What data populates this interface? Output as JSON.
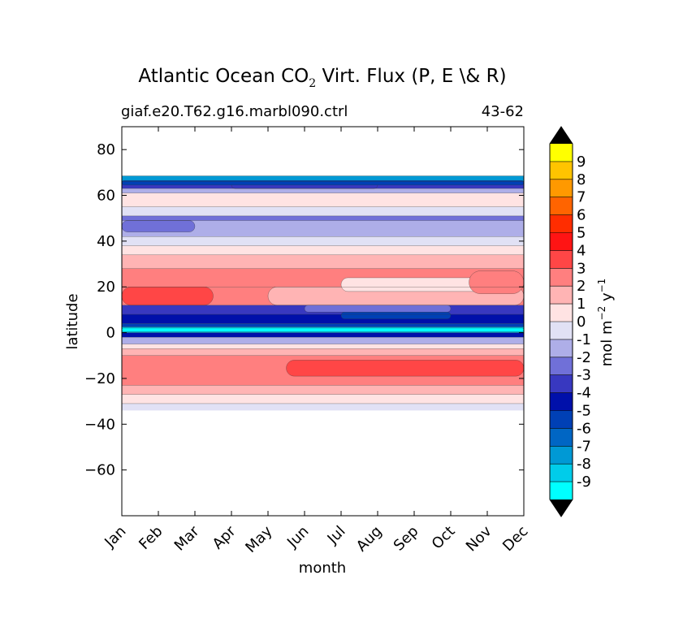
{
  "chart_data": {
    "type": "heatmap",
    "title_main": "Atlantic Ocean CO",
    "title_sub": "2",
    "title_rest": " Virt. Flux (P, E \\& R)",
    "case_label": "giaf.e20.T62.g16.marbl090.ctrl",
    "years_label": "43-62",
    "xlabel": "month",
    "ylabel": "latitude",
    "x_categories": [
      "Jan",
      "Feb",
      "Mar",
      "Apr",
      "May",
      "Jun",
      "Jul",
      "Aug",
      "Sep",
      "Oct",
      "Nov",
      "Dec"
    ],
    "ylim": [
      -80,
      90
    ],
    "y_ticks": [
      80,
      60,
      40,
      20,
      0,
      -20,
      -40,
      -60
    ],
    "y_tick_labels": [
      "80",
      "60",
      "40",
      "20",
      "0",
      "−20",
      "−40",
      "−60"
    ],
    "colorbar": {
      "levels": [
        -10,
        -9,
        -8,
        -7,
        -6,
        -5,
        -4,
        -3,
        -2,
        -1,
        0,
        1,
        2,
        3,
        4,
        5,
        6,
        7,
        8,
        9,
        10
      ],
      "tick_labels": [
        "-9",
        "-8",
        "-7",
        "-6",
        "-5",
        "-4",
        "-3",
        "-2",
        "-1",
        "0",
        "1",
        "2",
        "3",
        "4",
        "5",
        "6",
        "7",
        "8",
        "9"
      ],
      "colors": [
        "#00ffff",
        "#00ccea",
        "#0099d5",
        "#0066c4",
        "#0040b5",
        "#0010aa",
        "#3838c0",
        "#7070d8",
        "#aeaee8",
        "#e1e1f5",
        "#ffe3e3",
        "#ffb4b4",
        "#ff7f7f",
        "#ff4646",
        "#ff1414",
        "#ff2d00",
        "#ff6400",
        "#ff9900",
        "#ffc400",
        "#ffff00"
      ],
      "extend_color": "#000000",
      "label": "mol m",
      "label_exp1": "−2",
      "label_mid": "  y",
      "label_exp2": "−1"
    },
    "bands": [
      {
        "lat_min": 66,
        "lat_max": 68.5,
        "level": -8
      },
      {
        "lat_min": 63,
        "lat_max": 66,
        "level": -4
      },
      {
        "lat_min": 61,
        "lat_max": 63,
        "level": -2
      },
      {
        "lat_min": 55,
        "lat_max": 61,
        "level": 0.5
      },
      {
        "lat_min": 51,
        "lat_max": 55,
        "level": -0.5
      },
      {
        "lat_min": 49,
        "lat_max": 51,
        "level": -2.5
      },
      {
        "lat_min": 42,
        "lat_max": 49,
        "level": -1.5
      },
      {
        "lat_min": 38,
        "lat_max": 42,
        "level": -0.5
      },
      {
        "lat_min": 34,
        "lat_max": 38,
        "level": 0.5
      },
      {
        "lat_min": 28,
        "lat_max": 34,
        "level": 1.5
      },
      {
        "lat_min": 20,
        "lat_max": 28,
        "level": 2.5
      },
      {
        "lat_min": 12,
        "lat_max": 20,
        "level": 2.5
      },
      {
        "lat_min": 8,
        "lat_max": 12,
        "level": -3.5
      },
      {
        "lat_min": 4,
        "lat_max": 8,
        "level": -4.5
      },
      {
        "lat_min": 2.5,
        "lat_max": 4,
        "level": -5.5
      },
      {
        "lat_min": 0,
        "lat_max": 2.5,
        "level": -8.5
      },
      {
        "lat_min": -2,
        "lat_max": 0,
        "level": -4.5
      },
      {
        "lat_min": -5,
        "lat_max": -2,
        "level": -1.5
      },
      {
        "lat_min": -7,
        "lat_max": -5,
        "level": 0.5
      },
      {
        "lat_min": -10,
        "lat_max": -7,
        "level": 1.5
      },
      {
        "lat_min": -23,
        "lat_max": -10,
        "level": 2.5
      },
      {
        "lat_min": -27,
        "lat_max": -23,
        "level": 1.5
      },
      {
        "lat_min": -31,
        "lat_max": -27,
        "level": 0.5
      },
      {
        "lat_min": -34,
        "lat_max": -31,
        "level": -0.5
      }
    ],
    "patches": [
      {
        "month_start": 0,
        "month_end": 2.5,
        "lat_min": 12,
        "lat_max": 20,
        "level": 3.5
      },
      {
        "month_start": 4.5,
        "month_end": 11,
        "lat_min": -19,
        "lat_max": -12,
        "level": 3.5
      },
      {
        "month_start": 4,
        "month_end": 11,
        "lat_min": 12,
        "lat_max": 20,
        "level": 1.5
      },
      {
        "month_start": 6,
        "month_end": 10,
        "lat_min": 18,
        "lat_max": 24,
        "level": 0.5
      },
      {
        "month_start": 9.5,
        "month_end": 11,
        "lat_min": 17,
        "lat_max": 27,
        "level": 2.5
      },
      {
        "month_start": 3,
        "month_end": 7,
        "lat_min": 63,
        "lat_max": 66,
        "level": -3.5
      },
      {
        "month_start": 0,
        "month_end": 11,
        "lat_min": 64.5,
        "lat_max": 66.5,
        "level": -5.5
      },
      {
        "month_start": 0,
        "month_end": 2,
        "lat_min": 44,
        "lat_max": 49,
        "level": -2.5
      },
      {
        "month_start": 6,
        "month_end": 9,
        "lat_min": 6,
        "lat_max": 9,
        "level": -5.5
      },
      {
        "month_start": 0,
        "month_end": 11,
        "lat_min": 0.5,
        "lat_max": 2,
        "level": -9.5
      },
      {
        "month_start": 5,
        "month_end": 9,
        "lat_min": 9,
        "lat_max": 12,
        "level": -2.5
      }
    ]
  }
}
